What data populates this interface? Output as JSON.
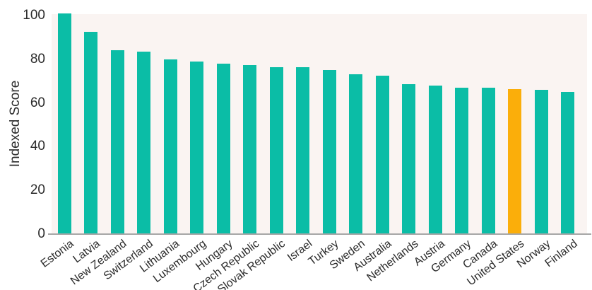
{
  "chart_data": {
    "type": "bar",
    "title": "",
    "ylabel": "Indexed Score",
    "xlabel": "",
    "categories": [
      "Estonia",
      "Latvia",
      "New Zealand",
      "Switzerland",
      "Lithuania",
      "Luxembourg",
      "Hungary",
      "Czech Republic",
      "Slovak Republic",
      "Israel",
      "Turkey",
      "Sweden",
      "Australia",
      "Netherlands",
      "Austria",
      "Germany",
      "Canada",
      "United States",
      "Norway",
      "Finland"
    ],
    "values": [
      101,
      92.5,
      84,
      83.5,
      80,
      79,
      78,
      77.5,
      76.5,
      76.5,
      75,
      73,
      72.5,
      68.5,
      68,
      67,
      67,
      66.5,
      66,
      65
    ],
    "highlight_category": "United States",
    "ylim": [
      0,
      100
    ],
    "yticks": [
      0,
      20,
      40,
      60,
      80,
      100
    ],
    "grid": false,
    "legend": "none",
    "colors": {
      "bar": "#0BBDA6",
      "highlight_bar": "#FBAE0A",
      "plot_background": "#FAF4F2",
      "figure_background": "#FFFFFF",
      "axis_line": "#A7A7A7",
      "text": "#2B2B2B"
    }
  }
}
